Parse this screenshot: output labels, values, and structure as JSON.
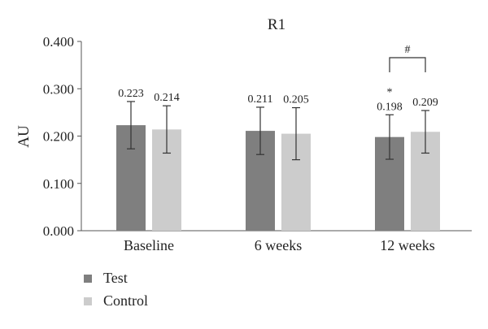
{
  "chart_data": {
    "type": "bar",
    "title": "R1",
    "xlabel": "",
    "ylabel": "AU",
    "ylim": [
      0,
      0.4
    ],
    "yticks": [
      "0.000",
      "0.100",
      "0.200",
      "0.300",
      "0.400"
    ],
    "grid": false,
    "legend_position": "bottom-left",
    "categories": [
      "Baseline",
      "6 weeks",
      "12 weeks"
    ],
    "series": [
      {
        "name": "Test",
        "color": "#7f7f7f",
        "values": [
          0.223,
          0.211,
          0.198
        ],
        "labels": [
          "0.223",
          "0.211",
          "0.198"
        ],
        "error": [
          0.05,
          0.05,
          0.047
        ]
      },
      {
        "name": "Control",
        "color": "#cccccc",
        "values": [
          0.214,
          0.205,
          0.209
        ],
        "labels": [
          "0.214",
          "0.205",
          "0.209"
        ],
        "error": [
          0.05,
          0.055,
          0.045
        ]
      }
    ],
    "annotations": [
      {
        "text": "*",
        "category": "12 weeks",
        "series": "Test"
      },
      {
        "text": "#",
        "category": "12 weeks",
        "bracket": [
          "Test",
          "Control"
        ]
      }
    ]
  }
}
